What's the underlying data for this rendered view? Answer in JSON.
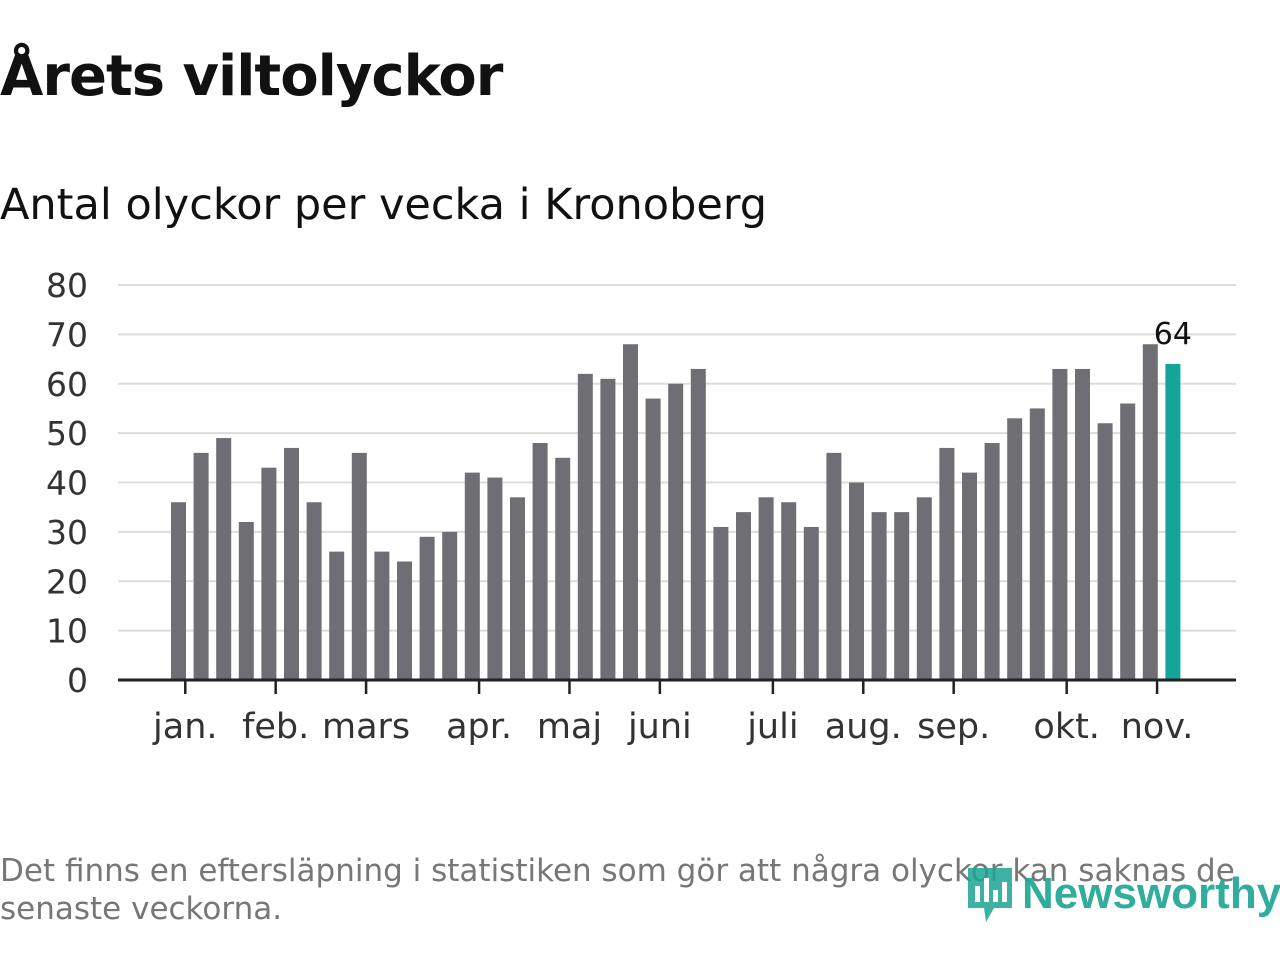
{
  "title": "Årets viltolyckor",
  "subtitle": "Antal olyckor per vecka i Kronoberg",
  "footnote": "Det finns en eftersläpning i statistiken som gör att några olyckor kan saknas de senaste veckorna.",
  "brand": {
    "name": "Newsworthy",
    "icon": "newsworthy-logo-icon"
  },
  "colors": {
    "bar": "#6e6e74",
    "highlight": "#13a598",
    "grid": "#dcdcdc",
    "axis": "#222222",
    "tick_label": "#333333",
    "brand": "#1ba592"
  },
  "chart_data": {
    "type": "bar",
    "title": "Antal olyckor per vecka i Kronoberg",
    "xlabel": "",
    "ylabel": "",
    "ylim": [
      0,
      80
    ],
    "yticks": [
      0,
      10,
      20,
      30,
      40,
      50,
      60,
      70,
      80
    ],
    "grid": true,
    "values": [
      36,
      46,
      49,
      32,
      43,
      47,
      36,
      26,
      46,
      26,
      24,
      29,
      30,
      42,
      41,
      37,
      48,
      45,
      62,
      61,
      68,
      57,
      60,
      63,
      31,
      34,
      37,
      36,
      31,
      46,
      40,
      34,
      34,
      37,
      47,
      42,
      48,
      53,
      55,
      63,
      63,
      52,
      56,
      68,
      64
    ],
    "highlight_index": 44,
    "annotation": {
      "index": 44,
      "text": "64"
    },
    "month_ticks": [
      {
        "label": "jan.",
        "bar_index": 0.3
      },
      {
        "label": "feb.",
        "bar_index": 4.3
      },
      {
        "label": "mars",
        "bar_index": 8.3
      },
      {
        "label": "apr.",
        "bar_index": 13.3
      },
      {
        "label": "maj",
        "bar_index": 17.3
      },
      {
        "label": "juni",
        "bar_index": 21.3
      },
      {
        "label": "juli",
        "bar_index": 26.3
      },
      {
        "label": "aug.",
        "bar_index": 30.3
      },
      {
        "label": "sep.",
        "bar_index": 34.3
      },
      {
        "label": "okt.",
        "bar_index": 39.3
      },
      {
        "label": "nov.",
        "bar_index": 43.3
      }
    ]
  }
}
